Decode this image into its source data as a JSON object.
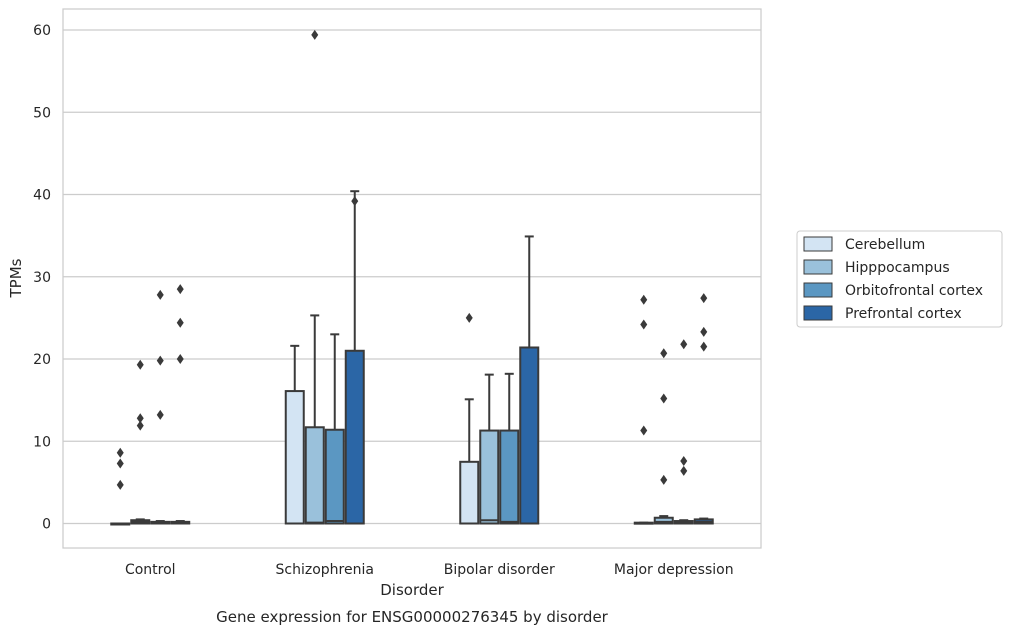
{
  "chart_data": {
    "type": "box",
    "caption": "Gene expression for ENSG00000276345 by disorder",
    "xlabel": "Disorder",
    "ylabel": "TPMs",
    "ylim": [
      -3,
      62.5
    ],
    "yticks": [
      0,
      10,
      20,
      30,
      40,
      50,
      60
    ],
    "grid": true,
    "legend_position": "right",
    "categories": [
      "Control",
      "Schizophrenia",
      "Bipolar disorder",
      "Major depression"
    ],
    "series": [
      {
        "name": "Cerebellum",
        "color": "#d3e4f3",
        "boxes": [
          {
            "q1": 0,
            "median": 0,
            "q3": 0,
            "whisker_low": 0,
            "whisker_high": 0,
            "outliers": [
              8.6,
              7.3,
              4.7
            ]
          },
          {
            "q1": 0,
            "median": 0,
            "q3": 16.1,
            "whisker_low": 0,
            "whisker_high": 21.6,
            "outliers": []
          },
          {
            "q1": 0,
            "median": 0,
            "q3": 7.5,
            "whisker_low": 0,
            "whisker_high": 15.1,
            "outliers": [
              25.0
            ]
          },
          {
            "q1": 0,
            "median": 0,
            "q3": 0.1,
            "whisker_low": 0,
            "whisker_high": 0.1,
            "outliers": [
              27.2,
              24.2,
              11.3
            ]
          }
        ]
      },
      {
        "name": "Hipppocampus",
        "color": "#9ac1db",
        "boxes": [
          {
            "q1": 0,
            "median": 0.2,
            "q3": 0.4,
            "whisker_low": 0,
            "whisker_high": 0.5,
            "outliers": [
              19.3,
              12.8,
              11.9
            ]
          },
          {
            "q1": 0,
            "median": 0.1,
            "q3": 11.7,
            "whisker_low": 0,
            "whisker_high": 25.3,
            "outliers": [
              59.4
            ]
          },
          {
            "q1": 0,
            "median": 0.4,
            "q3": 11.3,
            "whisker_low": 0,
            "whisker_high": 18.1,
            "outliers": []
          },
          {
            "q1": 0,
            "median": 0.2,
            "q3": 0.7,
            "whisker_low": 0,
            "whisker_high": 0.9,
            "outliers": [
              20.7,
              15.2,
              5.3
            ]
          }
        ]
      },
      {
        "name": "Orbitofrontal cortex",
        "color": "#5b97c2",
        "boxes": [
          {
            "q1": 0,
            "median": 0.1,
            "q3": 0.2,
            "whisker_low": 0,
            "whisker_high": 0.3,
            "outliers": [
              27.8,
              19.8,
              13.2
            ]
          },
          {
            "q1": 0,
            "median": 0.3,
            "q3": 11.4,
            "whisker_low": 0,
            "whisker_high": 23.0,
            "outliers": []
          },
          {
            "q1": 0,
            "median": 0.2,
            "q3": 11.3,
            "whisker_low": 0,
            "whisker_high": 18.2,
            "outliers": []
          },
          {
            "q1": 0,
            "median": 0.1,
            "q3": 0.3,
            "whisker_low": 0,
            "whisker_high": 0.4,
            "outliers": [
              21.8,
              7.6,
              6.4
            ]
          }
        ]
      },
      {
        "name": "Prefrontal cortex",
        "color": "#2b66a6",
        "boxes": [
          {
            "q1": 0,
            "median": 0.1,
            "q3": 0.2,
            "whisker_low": 0,
            "whisker_high": 0.3,
            "outliers": [
              28.5,
              24.4,
              20.0
            ]
          },
          {
            "q1": 0,
            "median": 0,
            "q3": 21.0,
            "whisker_low": 0,
            "whisker_high": 40.4,
            "outliers": [
              39.2
            ]
          },
          {
            "q1": 0,
            "median": 0,
            "q3": 21.4,
            "whisker_low": 0,
            "whisker_high": 34.9,
            "outliers": []
          },
          {
            "q1": 0,
            "median": 0.2,
            "q3": 0.5,
            "whisker_low": 0,
            "whisker_high": 0.6,
            "outliers": [
              27.4,
              23.3,
              21.5
            ]
          }
        ]
      }
    ]
  }
}
